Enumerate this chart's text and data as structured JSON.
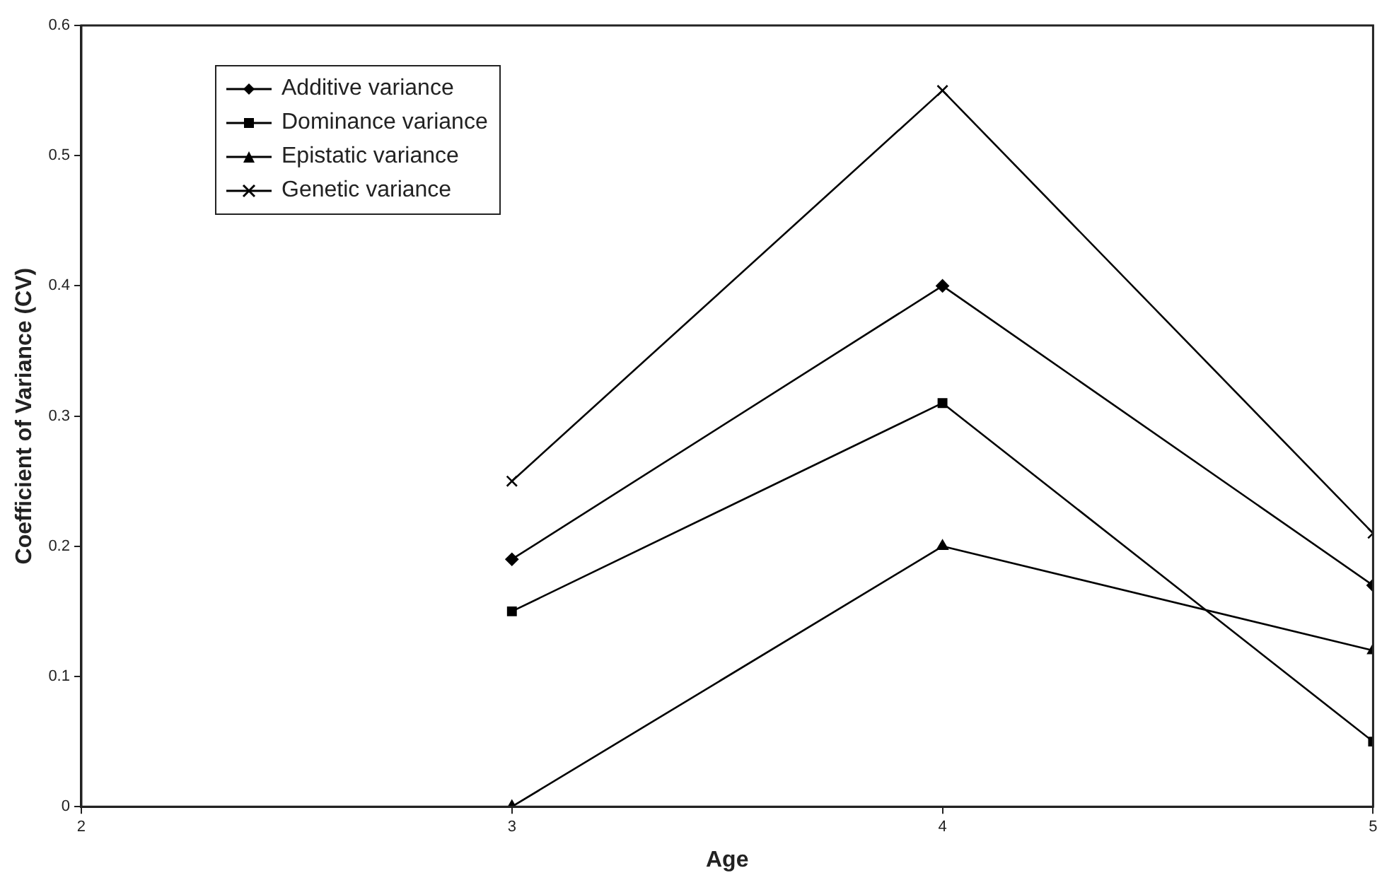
{
  "chart_data": {
    "type": "line",
    "xlabel": "Age",
    "ylabel": "Coefficient of Variance (CV)",
    "x": [
      3,
      4,
      5
    ],
    "xlim": [
      2,
      5
    ],
    "xticks": [
      2,
      3,
      4,
      5
    ],
    "ylim": [
      0,
      0.6
    ],
    "yticks": [
      0,
      0.1,
      0.2,
      0.3,
      0.4,
      0.5,
      0.6
    ],
    "grid": false,
    "legend": "top left",
    "line_style": "solid",
    "series": [
      {
        "name": "Additive variance",
        "color": "#000000",
        "marker": "diamond",
        "values": [
          0.19,
          0.4,
          0.17
        ]
      },
      {
        "name": "Dominance variance",
        "color": "#000000",
        "marker": "square",
        "values": [
          0.15,
          0.31,
          0.05
        ]
      },
      {
        "name": "Epistatic variance",
        "color": "#000000",
        "marker": "triangle",
        "values": [
          0,
          0.2,
          0.12
        ]
      },
      {
        "name": "Genetic variance",
        "color": "#000000",
        "marker": "cross",
        "values": [
          0.25,
          0.55,
          0.21
        ]
      }
    ]
  }
}
